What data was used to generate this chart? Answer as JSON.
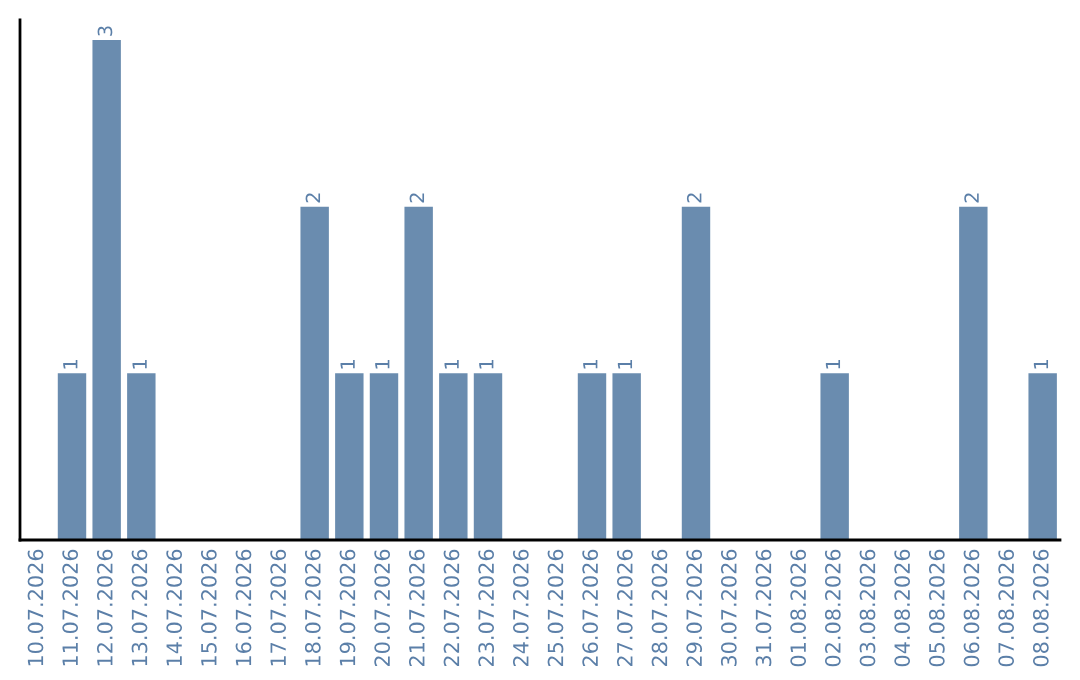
{
  "chart_data": {
    "type": "bar",
    "categories": [
      "10.07.2026",
      "11.07.2026",
      "12.07.2026",
      "13.07.2026",
      "14.07.2026",
      "15.07.2026",
      "16.07.2026",
      "17.07.2026",
      "18.07.2026",
      "19.07.2026",
      "20.07.2026",
      "21.07.2026",
      "22.07.2026",
      "23.07.2026",
      "24.07.2026",
      "25.07.2026",
      "26.07.2026",
      "27.07.2026",
      "28.07.2026",
      "29.07.2026",
      "30.07.2026",
      "31.07.2026",
      "01.08.2026",
      "02.08.2026",
      "03.08.2026",
      "04.08.2026",
      "05.08.2026",
      "06.08.2026",
      "07.08.2026",
      "08.08.2026"
    ],
    "values": [
      0,
      1,
      3,
      1,
      0,
      0,
      0,
      0,
      2,
      1,
      1,
      2,
      1,
      1,
      0,
      0,
      1,
      1,
      0,
      2,
      0,
      0,
      0,
      1,
      0,
      0,
      0,
      2,
      0,
      1
    ],
    "value_labels": [
      null,
      "1",
      "3",
      "1",
      null,
      null,
      null,
      null,
      "2",
      "1",
      "1",
      "2",
      "1",
      "1",
      null,
      null,
      "1",
      "1",
      null,
      "2",
      null,
      null,
      null,
      "1",
      null,
      null,
      null,
      "2",
      null,
      "1"
    ],
    "color": "#6a8caf",
    "tick_labels": "x",
    "grid": false
  }
}
